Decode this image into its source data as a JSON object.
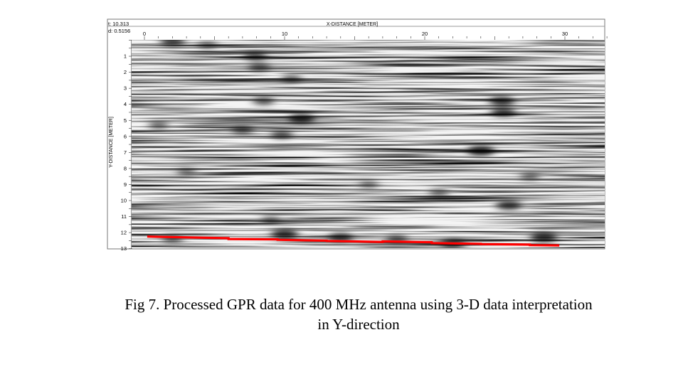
{
  "chart_data": {
    "type": "heatmap",
    "title": "",
    "xlabel": "X-DISTANCE [METER]",
    "ylabel": "Y-DISTANCE [METER]",
    "header_readout": [
      "t: 10.313",
      "d: 0.5156"
    ],
    "xlim": [
      -0.5,
      33
    ],
    "ylim": [
      0,
      13
    ],
    "x_ticks": [
      0,
      10,
      20,
      30
    ],
    "y_ticks": [
      1,
      2,
      3,
      4,
      5,
      6,
      7,
      8,
      9,
      10,
      11,
      12,
      13
    ],
    "colormap": "grayscale (white = low amplitude, black = high amplitude)",
    "grid": false,
    "anomalies": [
      {
        "x": 2.0,
        "y": 0.1,
        "strength": 0.75
      },
      {
        "x": 4.5,
        "y": 0.3,
        "strength": 0.4
      },
      {
        "x": 7.9,
        "y": 1.0,
        "strength": 0.6
      },
      {
        "x": 8.2,
        "y": 1.7,
        "strength": 0.55
      },
      {
        "x": 10.5,
        "y": 2.4,
        "strength": 0.45
      },
      {
        "x": 8.5,
        "y": 3.8,
        "strength": 0.55
      },
      {
        "x": 11.2,
        "y": 4.9,
        "strength": 0.85
      },
      {
        "x": 7.0,
        "y": 5.6,
        "strength": 0.55
      },
      {
        "x": 9.8,
        "y": 5.9,
        "strength": 0.6
      },
      {
        "x": 1.0,
        "y": 5.3,
        "strength": 0.45
      },
      {
        "x": 25.5,
        "y": 3.8,
        "strength": 0.8
      },
      {
        "x": 25.6,
        "y": 4.5,
        "strength": 0.75
      },
      {
        "x": 24.0,
        "y": 6.9,
        "strength": 0.95
      },
      {
        "x": 26.0,
        "y": 10.3,
        "strength": 0.8
      },
      {
        "x": 21.0,
        "y": 9.5,
        "strength": 0.4
      },
      {
        "x": 16.0,
        "y": 9.0,
        "strength": 0.35
      },
      {
        "x": 27.5,
        "y": 8.5,
        "strength": 0.4
      },
      {
        "x": 3.0,
        "y": 8.2,
        "strength": 0.35
      },
      {
        "x": 9.0,
        "y": 11.2,
        "strength": 0.35
      },
      {
        "x": 10.0,
        "y": 12.1,
        "strength": 0.9
      },
      {
        "x": 14.0,
        "y": 12.3,
        "strength": 0.75
      },
      {
        "x": 18.0,
        "y": 12.4,
        "strength": 0.55
      },
      {
        "x": 22.0,
        "y": 12.7,
        "strength": 0.8
      },
      {
        "x": 28.5,
        "y": 12.3,
        "strength": 0.9
      },
      {
        "x": 2.0,
        "y": 12.4,
        "strength": 0.5
      }
    ],
    "series": [
      {
        "type": "line",
        "color": "#ff0000",
        "x": [
          0.2,
          6.0,
          6.0,
          9.5,
          9.5,
          13.0,
          13.0,
          17.0,
          17.0,
          20.5,
          20.5,
          24.0,
          24.0,
          27.5,
          27.5,
          29.6
        ],
        "y": [
          12.25,
          12.35,
          12.4,
          12.42,
          12.45,
          12.5,
          12.52,
          12.58,
          12.55,
          12.6,
          12.65,
          12.7,
          12.72,
          12.75,
          12.78,
          12.8
        ]
      }
    ]
  },
  "caption": {
    "line1": "Fig 7. Processed GPR data for 400 MHz antenna using 3-D data interpretation",
    "line2": "in Y-direction"
  }
}
